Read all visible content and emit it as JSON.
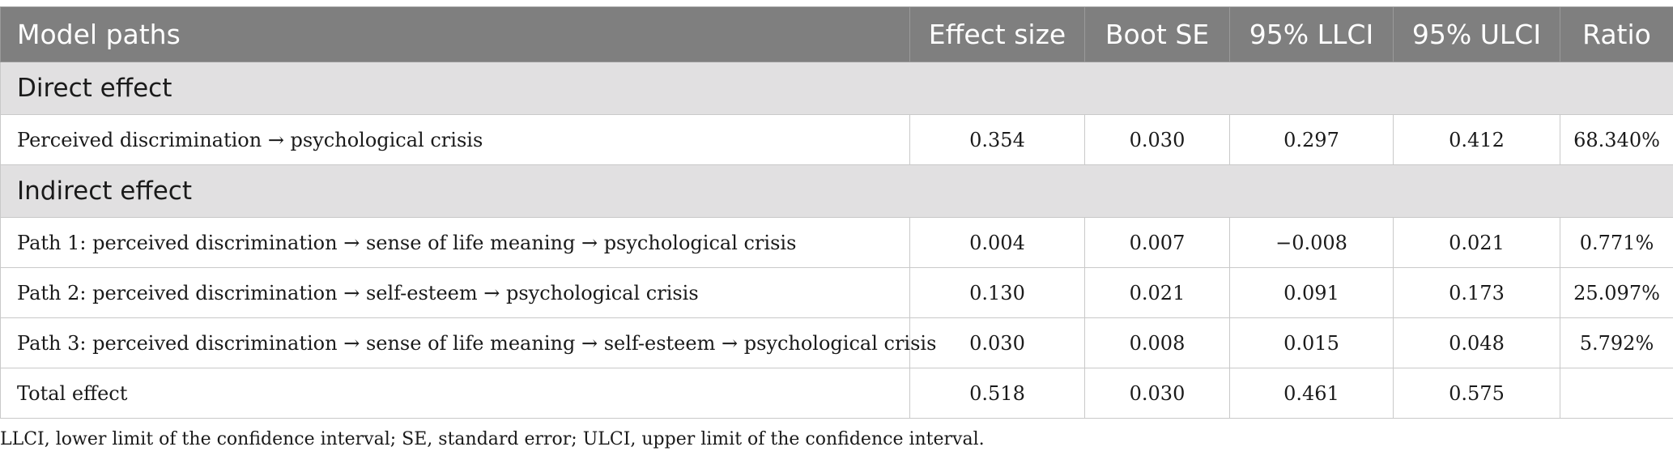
{
  "table": {
    "headers": [
      "Model paths",
      "Effect size",
      "Boot SE",
      "95% LLCI",
      "95% ULCI",
      "Ratio"
    ],
    "sections": [
      {
        "title": "Direct effect",
        "rows": [
          [
            "Perceived discrimination → psychological crisis",
            "0.354",
            "0.030",
            "0.297",
            "0.412",
            "68.340%"
          ]
        ]
      },
      {
        "title": "Indirect effect",
        "rows": [
          [
            "Path 1: perceived discrimination → sense of life meaning → psychological crisis",
            "0.004",
            "0.007",
            "−0.008",
            "0.021",
            "0.771%"
          ],
          [
            "Path 2: perceived discrimination → self-esteem → psychological crisis",
            "0.130",
            "0.021",
            "0.091",
            "0.173",
            "25.097%"
          ],
          [
            "Path 3: perceived discrimination → sense of life meaning → self-esteem → psychological crisis",
            "0.030",
            "0.008",
            "0.015",
            "0.048",
            "5.792%"
          ]
        ]
      }
    ],
    "total_row": [
      "Total effect",
      "0.518",
      "0.030",
      "0.461",
      "0.575",
      ""
    ]
  },
  "footnote": "LLCI, lower limit of the confidence interval; SE, standard error; ULCI, upper limit of the confidence interval."
}
